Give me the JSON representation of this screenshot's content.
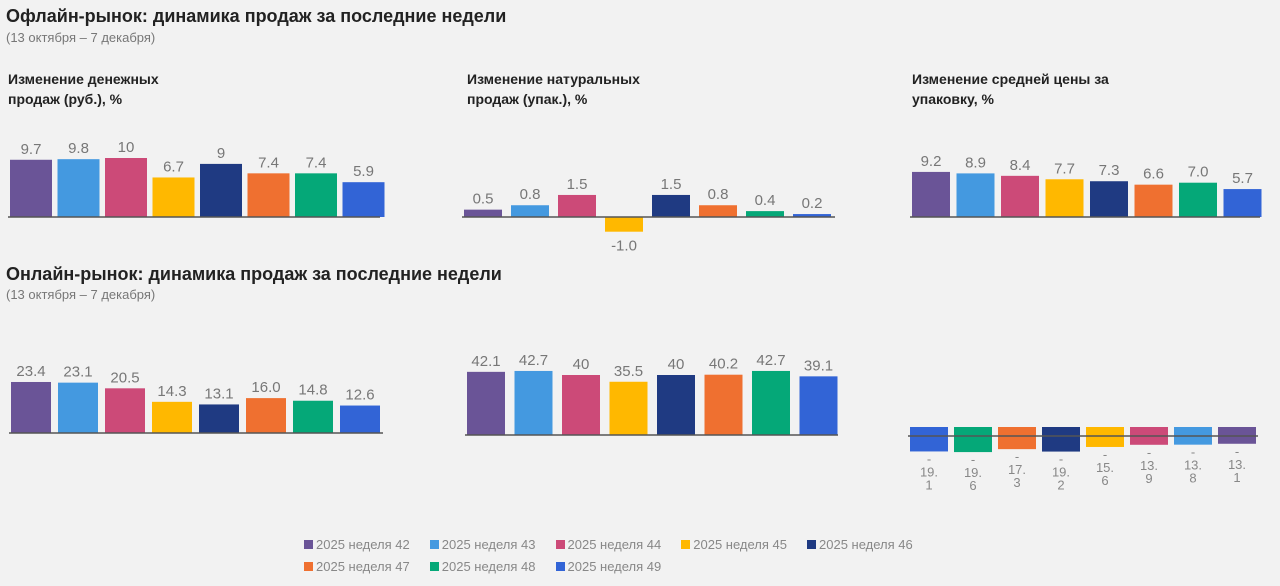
{
  "offline": {
    "title": "Офлайн-рынок: динамика продаж за последние недели",
    "subtitle": "(13 октября – 7 декабря)"
  },
  "online": {
    "title": "Онлайн-рынок: динамика продаж за последние недели",
    "subtitle": "(13 октября – 7 декабря)"
  },
  "legend": [
    "2025 неделя 42",
    "2025 неделя 43",
    "2025 неделя 44",
    "2025 неделя 45",
    "2025 неделя 46",
    "2025 неделя 47",
    "2025 неделя 48",
    "2025 неделя 49"
  ],
  "colors": [
    "#6a5497",
    "#4499e0",
    "#cc4a78",
    "#ffb800",
    "#1f3a82",
    "#ef7030",
    "#05a878",
    "#3264d6"
  ],
  "chart_data": [
    {
      "type": "bar",
      "title": "Изменение денежных продаж (руб.), %",
      "values": [
        9.7,
        9.8,
        10,
        6.7,
        9,
        7.4,
        7.4,
        5.9
      ],
      "labels": [
        "9.7",
        "9.8",
        "10",
        "6.7",
        "9",
        "7.4",
        "7.4",
        "5.9"
      ]
    },
    {
      "type": "bar",
      "title": "Изменение натуральных продаж (упак.), %",
      "values": [
        0.5,
        0.8,
        1.5,
        -1.0,
        1.5,
        0.8,
        0.4,
        0.2
      ],
      "labels": [
        "0.5",
        "0.8",
        "1.5",
        "-1.0",
        "1.5",
        "0.8",
        "0.4",
        "0.2"
      ]
    },
    {
      "type": "bar",
      "title": "Изменение средней цены за упаковку, %",
      "values": [
        9.2,
        8.9,
        8.4,
        7.7,
        7.3,
        6.6,
        7.0,
        5.7
      ],
      "labels": [
        "9.2",
        "8.9",
        "8.4",
        "7.7",
        "7.3",
        "6.6",
        "7.0",
        "5.7"
      ]
    },
    {
      "type": "bar",
      "title": "",
      "values": [
        23.4,
        23.1,
        20.5,
        14.3,
        13.1,
        16.0,
        14.8,
        12.6
      ],
      "labels": [
        "23.4",
        "23.1",
        "20.5",
        "14.3",
        "13.1",
        "16.0",
        "14.8",
        "12.6"
      ]
    },
    {
      "type": "bar",
      "title": "",
      "values": [
        42.1,
        42.7,
        40,
        35.5,
        40,
        40.2,
        42.7,
        39.1
      ],
      "labels": [
        "42.1",
        "42.7",
        "40",
        "35.5",
        "40",
        "40.2",
        "42.7",
        "39.1"
      ]
    },
    {
      "type": "bar",
      "title": "",
      "series_order": [
        7,
        6,
        5,
        4,
        3,
        2,
        1,
        0
      ],
      "values": [
        -19.1,
        -19.6,
        -17.3,
        -19.2,
        -15.6,
        -13.9,
        -13.8,
        -13.1
      ],
      "labels": [
        "-19.1",
        "-19.6",
        "-17.3",
        "-19.2",
        "-15.6",
        "-13.9",
        "-13.8",
        "-13.1"
      ]
    }
  ]
}
